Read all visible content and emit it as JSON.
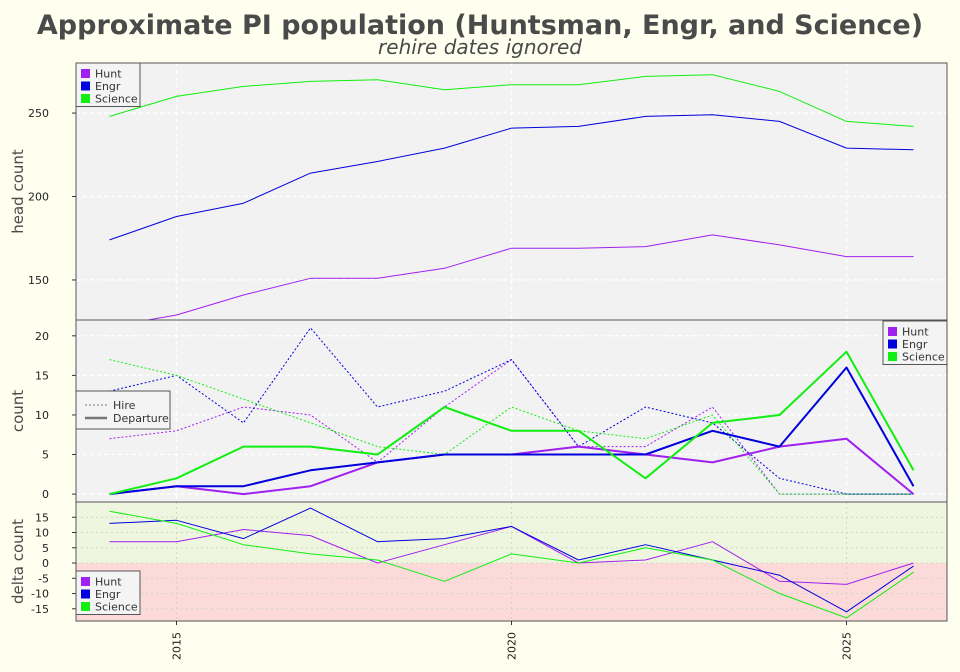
{
  "title": "Approximate PI population (Huntsman, Engr, and Science)",
  "subtitle": "rehire dates ignored",
  "colors": {
    "Hunt": "#a020f0",
    "Engr": "#0000dd",
    "Science": "#11ee11",
    "bg": "#ffffef",
    "panel": "#f2f2f2",
    "pos": "#eef6e0",
    "neg": "#fcdada"
  },
  "chart_data": [
    {
      "type": "line",
      "ylabel": "head count",
      "x": [
        2014,
        2015,
        2016,
        2017,
        2018,
        2019,
        2020,
        2021,
        2022,
        2023,
        2024,
        2025,
        2026
      ],
      "xlim": [
        2013.5,
        2026.5
      ],
      "ylim": [
        126,
        280
      ],
      "yticks": [
        150,
        200,
        250
      ],
      "legend": [
        "Hunt",
        "Engr",
        "Science"
      ],
      "legend_loc": "upper-left",
      "series": [
        {
          "name": "Hunt",
          "values": [
            122,
            129,
            141,
            151,
            151,
            157,
            169,
            169,
            170,
            177,
            171,
            164,
            164
          ]
        },
        {
          "name": "Engr",
          "values": [
            174,
            188,
            196,
            214,
            221,
            229,
            241,
            242,
            248,
            249,
            245,
            229,
            228
          ]
        },
        {
          "name": "Science",
          "values": [
            248,
            260,
            266,
            269,
            270,
            264,
            267,
            267,
            272,
            273,
            263,
            245,
            242
          ]
        }
      ]
    },
    {
      "type": "line",
      "ylabel": "count",
      "x": [
        2014,
        2015,
        2016,
        2017,
        2018,
        2019,
        2020,
        2021,
        2022,
        2023,
        2024,
        2025,
        2026
      ],
      "xlim": [
        2013.5,
        2026.5
      ],
      "ylim": [
        -1,
        22
      ],
      "yticks": [
        0,
        5,
        10,
        15,
        20
      ],
      "legend": [
        "Hunt",
        "Engr",
        "Science"
      ],
      "legend_loc": "upper-right",
      "style_legend": [
        "Hire",
        "Departure"
      ],
      "style_legend_loc": "center-left",
      "hire_series": [
        {
          "name": "Hunt",
          "values": [
            7,
            8,
            11,
            10,
            4,
            11,
            17,
            6,
            6,
            11,
            0,
            0,
            0
          ]
        },
        {
          "name": "Engr",
          "values": [
            13,
            15,
            9,
            21,
            11,
            13,
            17,
            6,
            11,
            9,
            2,
            0,
            0
          ]
        },
        {
          "name": "Science",
          "values": [
            17,
            15,
            12,
            9,
            6,
            5,
            11,
            8,
            7,
            10,
            0,
            0,
            0
          ]
        }
      ],
      "departure_series": [
        {
          "name": "Hunt",
          "values": [
            0,
            1,
            0,
            1,
            4,
            5,
            5,
            6,
            5,
            4,
            6,
            7,
            0
          ]
        },
        {
          "name": "Engr",
          "values": [
            0,
            1,
            1,
            3,
            4,
            5,
            5,
            5,
            5,
            8,
            6,
            16,
            1
          ]
        },
        {
          "name": "Science",
          "values": [
            0,
            2,
            6,
            6,
            5,
            11,
            8,
            8,
            2,
            9,
            10,
            18,
            3
          ]
        }
      ]
    },
    {
      "type": "line",
      "ylabel": "delta count",
      "x": [
        2014,
        2015,
        2016,
        2017,
        2018,
        2019,
        2020,
        2021,
        2022,
        2023,
        2024,
        2025,
        2026
      ],
      "xlim": [
        2013.5,
        2026.5
      ],
      "ylim": [
        -19,
        20
      ],
      "yticks": [
        -15,
        -10,
        -5,
        0,
        5,
        10,
        15
      ],
      "xticks": [
        "2015",
        "2020",
        "2025"
      ],
      "legend": [
        "Hunt",
        "Engr",
        "Science"
      ],
      "legend_loc": "lower-left",
      "series": [
        {
          "name": "Hunt",
          "values": [
            7,
            7,
            11,
            9,
            0,
            6,
            12,
            0,
            1,
            7,
            -6,
            -7,
            0
          ]
        },
        {
          "name": "Engr",
          "values": [
            13,
            14,
            8,
            18,
            7,
            8,
            12,
            1,
            6,
            1,
            -4,
            -16,
            -1
          ]
        },
        {
          "name": "Science",
          "values": [
            17,
            13,
            6,
            3,
            1,
            -6,
            3,
            0,
            5,
            1,
            -10,
            -18,
            -3
          ]
        }
      ]
    }
  ]
}
